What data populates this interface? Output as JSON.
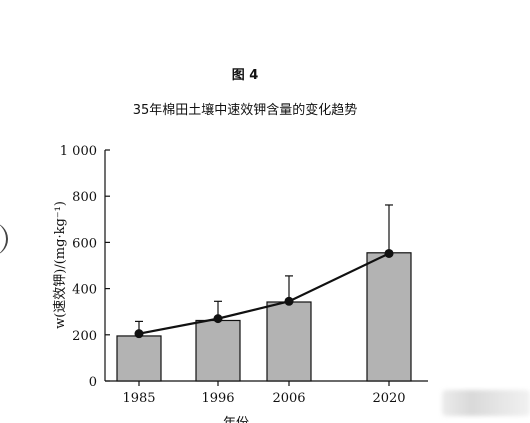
{
  "figure": {
    "label": "图 4",
    "title": "35年棉田土壤中速效钾含量的变化趋势"
  },
  "chart_data": {
    "type": "bar",
    "categories": [
      "1985",
      "1996",
      "2006",
      "2020"
    ],
    "values": [
      195,
      262,
      342,
      555
    ],
    "error_upper": [
      258,
      345,
      455,
      762
    ],
    "trend_line": [
      205,
      270,
      345,
      552
    ],
    "ylabel": "w(速效钾)/(mg·kg⁻¹)",
    "xlabel": "年份",
    "ylim": [
      0,
      1000
    ],
    "yticks": [
      0,
      200,
      400,
      600,
      800,
      1000
    ],
    "ytick_labels": [
      "0",
      "200",
      "400",
      "600",
      "800",
      "1 000"
    ],
    "bar_color": "#b3b3b3",
    "line_color": "#111111",
    "grid": false,
    "legend": "none"
  }
}
